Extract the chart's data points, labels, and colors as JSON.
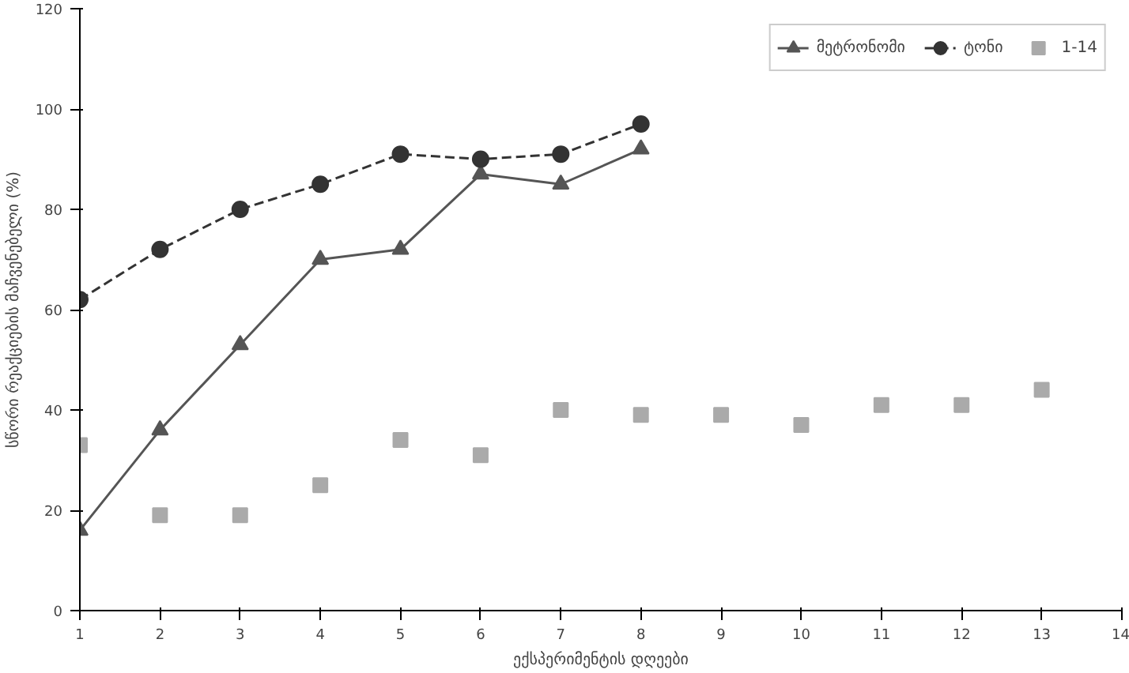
{
  "chart_data": {
    "type": "line",
    "xlabel": "ექსპერიმენტის დღეები",
    "ylabel": "სწორი რეაქციების მაჩვენებელი (%)",
    "xlim": [
      1,
      14
    ],
    "xticks": [
      1,
      2,
      3,
      4,
      5,
      6,
      7,
      8,
      9,
      10,
      11,
      12,
      13,
      14
    ],
    "ylim": [
      0,
      120
    ],
    "yticks": [
      0,
      20,
      40,
      60,
      80,
      100,
      120
    ],
    "grid": false,
    "legend": "top right",
    "series": [
      {
        "name": "მეტრონომი",
        "color": "#555555",
        "marker": "triangle",
        "line_style": "solid",
        "x": [
          1,
          2,
          3,
          4,
          5,
          6,
          7,
          8
        ],
        "values": [
          16,
          36,
          53,
          70,
          72,
          87,
          85,
          92
        ]
      },
      {
        "name": "ტონი",
        "color": "#333333",
        "marker": "circle",
        "line_style": "dashed",
        "x": [
          1,
          2,
          3,
          4,
          5,
          6,
          7,
          8
        ],
        "values": [
          62,
          72,
          80,
          85,
          91,
          90,
          91,
          97
        ]
      },
      {
        "name": "1-14",
        "type": "scatter",
        "color": "#aaaaaa",
        "marker": "square",
        "x": [
          1,
          2,
          3,
          4,
          5,
          6,
          7,
          8,
          9,
          10,
          11,
          12,
          13
        ],
        "values": [
          33,
          19,
          19,
          25,
          34,
          31,
          40,
          39,
          39,
          37,
          41,
          41,
          44
        ]
      }
    ]
  }
}
